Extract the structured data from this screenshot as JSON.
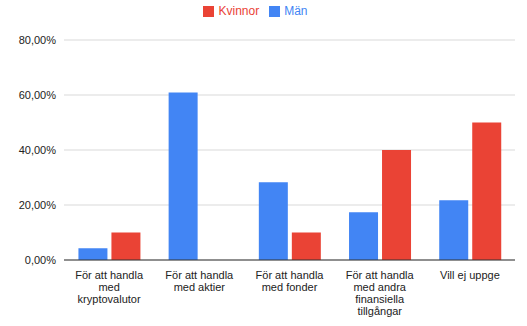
{
  "chart_data": {
    "type": "bar",
    "categories": [
      "För att handla med kryptovalutor",
      "För att handla med aktier",
      "För att handla med fonder",
      "För att handla med andra finansiella tillgångar",
      "Vill ej uppge"
    ],
    "series": [
      {
        "name": "Män",
        "color": "#4285f4",
        "values": [
          4.3,
          60.9,
          28.3,
          17.4,
          21.7
        ]
      },
      {
        "name": "Kvinnor",
        "color": "#ea4335",
        "values": [
          10,
          0,
          10,
          40,
          50
        ]
      }
    ],
    "ylim": [
      0,
      80
    ],
    "yticks": [
      {
        "value": 0,
        "label": "0,00%"
      },
      {
        "value": 20,
        "label": "20,00%"
      },
      {
        "value": 40,
        "label": "40,00%"
      },
      {
        "value": 60,
        "label": "60,00%"
      },
      {
        "value": 80,
        "label": "80,00%"
      }
    ],
    "grid": true,
    "legend": "top"
  }
}
